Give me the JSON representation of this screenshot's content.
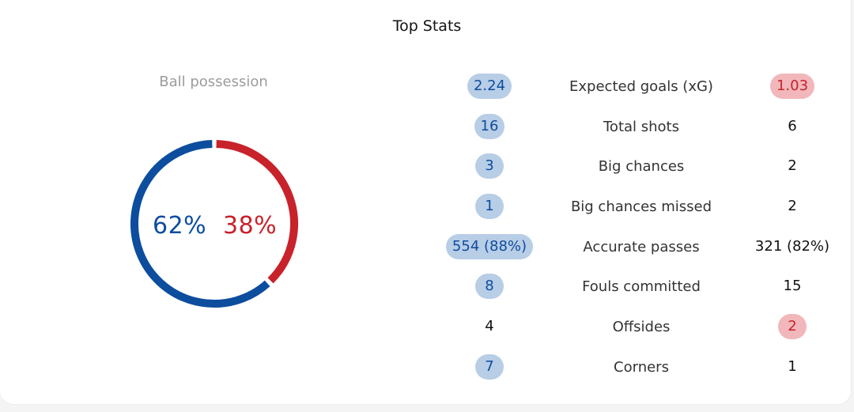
{
  "title": "Top Stats",
  "possession": {
    "label": "Ball possession",
    "home_pct_label": "62%",
    "away_pct_label": "38%",
    "home_share": 0.62,
    "away_share": 0.38
  },
  "colors": {
    "home": "#0d4d9e",
    "away": "#c8222b",
    "home_pill": "#b8cde6",
    "away_pill": "#f1b7ba"
  },
  "stats": [
    {
      "name": "Expected goals (xG)",
      "home": "2.24",
      "away": "1.03",
      "highlight": "both"
    },
    {
      "name": "Total shots",
      "home": "16",
      "away": "6",
      "highlight": "home"
    },
    {
      "name": "Big chances",
      "home": "3",
      "away": "2",
      "highlight": "home"
    },
    {
      "name": "Big chances missed",
      "home": "1",
      "away": "2",
      "highlight": "home"
    },
    {
      "name": "Accurate passes",
      "home": "554 (88%)",
      "away": "321 (82%)",
      "highlight": "home"
    },
    {
      "name": "Fouls committed",
      "home": "8",
      "away": "15",
      "highlight": "home"
    },
    {
      "name": "Offsides",
      "home": "4",
      "away": "2",
      "highlight": "away"
    },
    {
      "name": "Corners",
      "home": "7",
      "away": "1",
      "highlight": "home"
    }
  ]
}
